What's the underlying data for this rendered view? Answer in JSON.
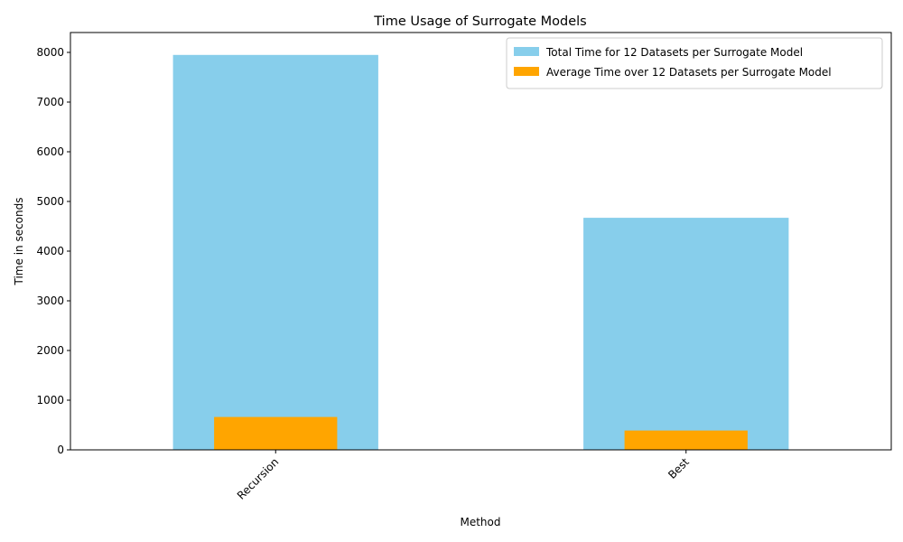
{
  "chart_data": {
    "type": "bar",
    "title": "Time Usage of Surrogate Models",
    "xlabel": "Method",
    "ylabel": "Time in seconds",
    "categories": [
      "Recursion",
      "Best"
    ],
    "series": [
      {
        "name": "Total Time for 12 Datasets per Surrogate Model",
        "values": [
          7950,
          4670
        ],
        "color": "#87CEEB"
      },
      {
        "name": "Average Time over 12 Datasets per Surrogate Model",
        "values": [
          662,
          389
        ],
        "color": "#FFA500"
      }
    ],
    "ylim": [
      0,
      8400
    ],
    "yticks": [
      "0",
      "1000",
      "2000",
      "3000",
      "4000",
      "5000",
      "6000",
      "7000",
      "8000"
    ],
    "grid": false,
    "legend_position": "top-right"
  }
}
